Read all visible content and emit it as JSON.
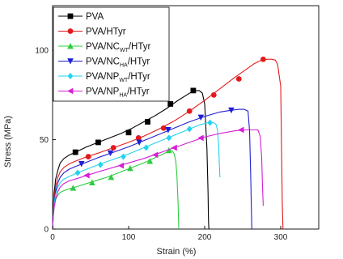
{
  "chart_data": {
    "type": "line",
    "xlabel": "Strain (%)",
    "ylabel": "Stress (MPa)",
    "xlim": [
      0,
      350
    ],
    "ylim": [
      0,
      125
    ],
    "x_ticks": [
      0,
      100,
      200,
      300
    ],
    "y_ticks": [
      0,
      50,
      100
    ],
    "x_tick_labels": [
      "0",
      "100",
      "200",
      "300"
    ],
    "y_tick_labels": [
      "0",
      "50",
      "100"
    ],
    "grid": false,
    "legend_position": "top-left",
    "series": [
      {
        "name": "PVA",
        "name_main": "PVA",
        "name_sub": "",
        "name_tail": "",
        "color": "#000000",
        "marker": "square",
        "x": [
          0,
          1,
          2,
          4,
          7,
          10,
          15,
          22,
          30,
          45,
          60,
          75,
          90,
          105,
          120,
          135,
          150,
          165,
          180,
          186,
          193,
          197,
          200,
          203,
          204.5,
          205,
          205.5
        ],
        "y": [
          0,
          12,
          20,
          28,
          33,
          37,
          39.5,
          41.5,
          43,
          46,
          48.5,
          51,
          53.5,
          56.5,
          60,
          63.5,
          67.5,
          72,
          76,
          77.5,
          77.5,
          76,
          70,
          45,
          20,
          5,
          0
        ],
        "marker_x": [
          30,
          60,
          100,
          125,
          155,
          185
        ],
        "marker_y": [
          43,
          48.5,
          54,
          60,
          70,
          77.5
        ]
      },
      {
        "name": "PVA/HTyr",
        "name_main": "PVA/HTyr",
        "name_sub": "",
        "name_tail": "",
        "color": "#e31a1c",
        "marker": "circle",
        "x": [
          0,
          1,
          2,
          4,
          7,
          10,
          15,
          22,
          30,
          45,
          60,
          80,
          100,
          120,
          140,
          160,
          180,
          200,
          220,
          240,
          255,
          265,
          275,
          283,
          288,
          293,
          296,
          300,
          301,
          302,
          303
        ],
        "y": [
          0,
          10,
          17,
          24,
          29,
          32,
          34.5,
          36.5,
          38,
          40.5,
          42.5,
          45.5,
          48.5,
          52,
          56,
          60.5,
          66,
          72,
          78.5,
          85,
          89.5,
          92.5,
          94.5,
          95,
          95,
          94.5,
          92,
          80,
          50,
          15,
          0
        ],
        "marker_x": [
          47,
          80,
          113,
          146,
          180,
          212,
          245,
          277
        ],
        "marker_y": [
          40.5,
          45.5,
          51,
          56.5,
          66,
          75,
          84,
          95
        ]
      },
      {
        "name": "PVA/NCWT/HTyr",
        "name_main": "PVA/NC",
        "name_sub": "WT",
        "name_tail": "/HTyr",
        "color": "#2ecc40",
        "marker": "triangle-up",
        "x": [
          0,
          1,
          2,
          4,
          7,
          10,
          15,
          22,
          30,
          45,
          60,
          75,
          90,
          105,
          120,
          135,
          150,
          155,
          158,
          160,
          162,
          163.5,
          165,
          166
        ],
        "y": [
          0,
          7,
          12,
          16.5,
          19,
          20.5,
          21.5,
          22.5,
          23.5,
          25.5,
          27.5,
          29.5,
          32,
          34.5,
          37,
          40,
          43,
          44,
          43.5,
          42,
          38,
          30,
          15,
          0
        ],
        "marker_x": [
          27,
          52,
          77,
          102,
          128,
          153
        ],
        "marker_y": [
          23,
          26,
          29,
          34,
          38,
          44
        ]
      },
      {
        "name": "PVA/NCHA/HTyr",
        "name_main": "PVA/NC",
        "name_sub": "HA",
        "name_tail": "/HTyr",
        "color": "#1f1fd6",
        "marker": "triangle-down",
        "x": [
          0,
          1,
          2,
          4,
          7,
          10,
          15,
          22,
          30,
          45,
          60,
          80,
          100,
          120,
          140,
          160,
          180,
          200,
          220,
          235,
          245,
          252,
          257,
          259,
          260.5,
          261.5,
          262
        ],
        "y": [
          0,
          9,
          15,
          21,
          26,
          29,
          31.5,
          33.5,
          35,
          37.5,
          40,
          43,
          46,
          49.5,
          53,
          56.5,
          60,
          63,
          65.5,
          66.5,
          67,
          67,
          66,
          55,
          30,
          10,
          0
        ],
        "marker_x": [
          38,
          76,
          114,
          152,
          195,
          235
        ],
        "marker_y": [
          36.5,
          42.5,
          48.5,
          55.5,
          62.5,
          66.5
        ]
      },
      {
        "name": "PVA/NPWT/HTyr",
        "name_main": "PVA/NP",
        "name_sub": "WT",
        "name_tail": "/HTyr",
        "color": "#22d3ee",
        "marker": "diamond",
        "x": [
          0,
          1,
          2,
          4,
          7,
          10,
          15,
          22,
          30,
          45,
          60,
          80,
          100,
          120,
          140,
          160,
          180,
          195,
          205,
          212,
          215,
          217,
          218.5,
          219.5,
          220
        ],
        "y": [
          0,
          8,
          14,
          19.5,
          23.5,
          26,
          28,
          29.5,
          31,
          33.5,
          36,
          39,
          42,
          45.5,
          49,
          52.5,
          56,
          58.5,
          59.5,
          59.5,
          58.5,
          55,
          45,
          35,
          29
        ],
        "marker_x": [
          33,
          63,
          93,
          123,
          153,
          180,
          207
        ],
        "marker_y": [
          31.5,
          36,
          40.5,
          45.5,
          51,
          56,
          59.5
        ]
      },
      {
        "name": "PVA/NPHA/HTyr",
        "name_main": "PVA/NP",
        "name_sub": "HA",
        "name_tail": "/HTyr",
        "color": "#d61fd6",
        "marker": "triangle-left",
        "x": [
          0,
          1,
          2,
          4,
          7,
          10,
          15,
          22,
          30,
          45,
          60,
          80,
          100,
          120,
          140,
          160,
          180,
          200,
          220,
          240,
          255,
          265,
          270,
          273,
          275,
          276,
          277
        ],
        "y": [
          0,
          7,
          12,
          17,
          21,
          23.5,
          25.5,
          27,
          28,
          30,
          32,
          34.5,
          37,
          39.5,
          42.5,
          45.5,
          48.5,
          51.5,
          53.5,
          55,
          55.5,
          55.5,
          55.5,
          52,
          40,
          25,
          13
        ],
        "marker_x": [
          45,
          90,
          135,
          160,
          195,
          248
        ],
        "marker_y": [
          30,
          35.5,
          41.5,
          45.5,
          51,
          55.5
        ]
      }
    ]
  }
}
